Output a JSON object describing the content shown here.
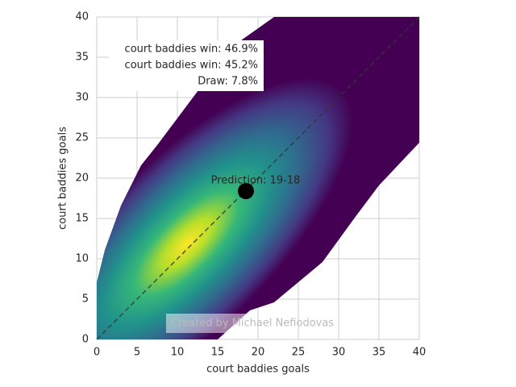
{
  "chart_data": {
    "type": "scatter",
    "xlabel": "court baddies goals",
    "ylabel": "court baddies goals",
    "xlim": [
      0,
      40
    ],
    "ylim": [
      0,
      40
    ],
    "xticks": [
      0,
      5,
      10,
      15,
      20,
      25,
      30,
      35,
      40
    ],
    "yticks": [
      0,
      5,
      10,
      15,
      20,
      25,
      30,
      35,
      40
    ],
    "grid": true,
    "diagonal": true,
    "series": [
      {
        "color": "#000000",
        "x": [
          18.5
        ],
        "values": [
          18.4
        ]
      }
    ],
    "point_label": "Prediction: 19-18",
    "annotation_lines": [
      "court baddies win: 46.9%",
      "court baddies win: 45.2%",
      "Draw: 7.8%"
    ],
    "watermark": "Created by Michael Nefiodovas"
  }
}
